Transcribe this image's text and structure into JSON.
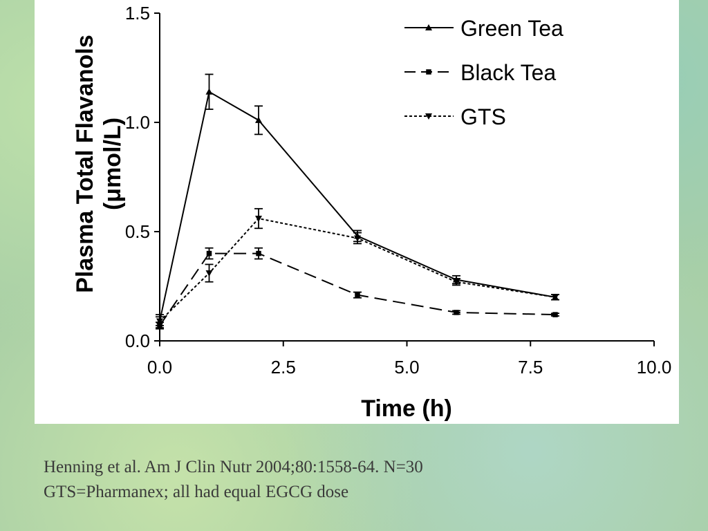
{
  "chart_data": {
    "type": "line",
    "xlabel": "Time (h)",
    "ylabel_line1": "Plasma Total Flavanols",
    "ylabel_line2": "(μmol/L)",
    "xlim": [
      0,
      10
    ],
    "ylim": [
      0,
      1.5
    ],
    "x_ticks": [
      "0.0",
      "2.5",
      "5.0",
      "7.5",
      "10.0"
    ],
    "y_ticks": [
      "0.0",
      "0.5",
      "1.0",
      "1.5"
    ],
    "x_tick_values": [
      0,
      2.5,
      5,
      7.5,
      10
    ],
    "y_tick_values": [
      0,
      0.5,
      1.0,
      1.5
    ],
    "grid": false,
    "legend_position": "top-right",
    "x": [
      0,
      1,
      2,
      4,
      6,
      8
    ],
    "series": [
      {
        "name": "Green Tea",
        "values": [
          0.09,
          1.14,
          1.01,
          0.48,
          0.28,
          0.2
        ],
        "errors": [
          0.03,
          0.08,
          0.065,
          0.025,
          0.018,
          0.012
        ],
        "line_style": "solid",
        "marker": "triangle-up"
      },
      {
        "name": "Black Tea",
        "values": [
          0.07,
          0.4,
          0.4,
          0.21,
          0.13,
          0.12
        ],
        "errors": [
          0.015,
          0.025,
          0.025,
          0.013,
          0.008,
          0.006
        ],
        "line_style": "dashed",
        "marker": "square"
      },
      {
        "name": "GTS",
        "values": [
          0.09,
          0.31,
          0.56,
          0.47,
          0.27,
          0.2
        ],
        "errors": [
          0.02,
          0.04,
          0.045,
          0.025,
          0.015,
          0.012
        ],
        "line_style": "dotted",
        "marker": "triangle-down"
      }
    ]
  },
  "citation": {
    "line1": "Henning et al. Am J Clin Nutr 2004;80:1558-64. N=30",
    "line2": "GTS=Pharmanex; all had equal EGCG dose"
  },
  "colors": {
    "background": "#a9cfa6",
    "chart_background": "#ffffff",
    "ink": "#000000",
    "citation_text": "#3a3a3a"
  }
}
